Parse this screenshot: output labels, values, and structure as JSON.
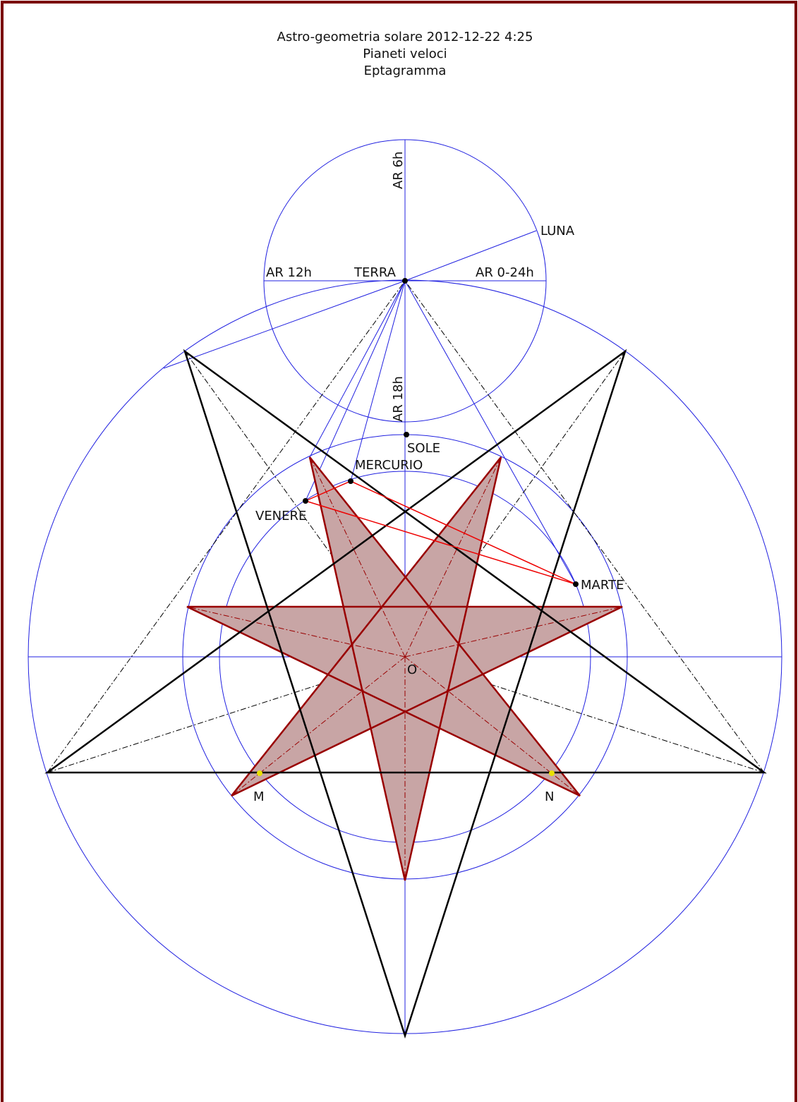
{
  "title": {
    "line1": "Astro-geometria solare 2012-12-22 4:25",
    "line2": "Pianeti veloci",
    "line3": "Eptagramma"
  },
  "labels": {
    "ar6": "AR 6h",
    "luna": "LUNA",
    "ar12": "AR 12h",
    "terra": "TERRA",
    "ar0": "AR 0-24h",
    "ar18": "AR 18h",
    "sole": "SOLE",
    "mercurio": "MERCURIO",
    "venere": "VENERE",
    "marte": "MARTE",
    "o": "O",
    "m": "M",
    "n": "N"
  }
}
